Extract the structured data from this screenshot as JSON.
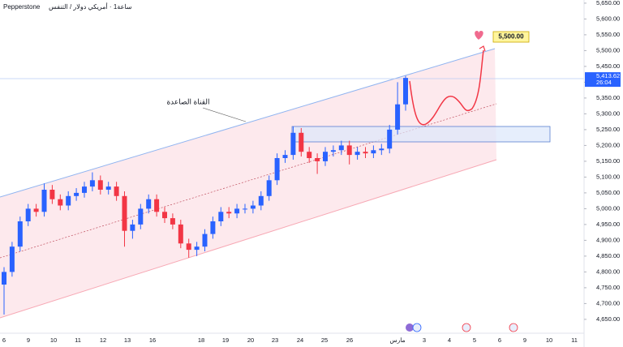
{
  "chart_data": {
    "type": "candlestick",
    "source": "Pepperstone",
    "title": "ساعة1 · أمريكي دولار / التنفس",
    "annotation": "القناة الصاعدة",
    "target_label": "5,500.00",
    "last_price_label": "5,413.62",
    "countdown": "26:04",
    "up_color": "#2962ff",
    "down_color": "#f23645",
    "categories": [
      "6",
      "9",
      "10",
      "11",
      "12",
      "13",
      "16",
      "18",
      "19",
      "20",
      "23",
      "24",
      "25",
      "26",
      "مارس",
      "3",
      "4",
      "5",
      "6",
      "9",
      "10",
      "11"
    ],
    "open": [
      4760,
      4800,
      4880,
      4960,
      5000,
      4990,
      5060,
      5030,
      5010,
      5040,
      5050,
      5070,
      5090,
      5060,
      5070,
      5040,
      4930,
      4950,
      5000,
      5030,
      4990,
      4970,
      4950,
      4890,
      4870,
      4880,
      4920,
      4960,
      4990,
      4985,
      5000,
      5000,
      5010,
      5040,
      5090,
      5160,
      5170,
      5240,
      5180,
      5160,
      5150,
      5180,
      5185,
      5200,
      5170,
      5180,
      5175,
      5185,
      5190,
      5250,
      5330
    ],
    "high": [
      4815,
      4895,
      4975,
      5015,
      5015,
      5080,
      5075,
      5045,
      5055,
      5065,
      5085,
      5115,
      5105,
      5085,
      5085,
      5055,
      4965,
      5015,
      5045,
      5045,
      5005,
      4985,
      4965,
      4905,
      4895,
      4935,
      4975,
      5005,
      5005,
      5015,
      5015,
      5025,
      5055,
      5105,
      5175,
      5185,
      5260,
      5255,
      5195,
      5175,
      5195,
      5200,
      5215,
      5215,
      5195,
      5195,
      5200,
      5205,
      5265,
      5400,
      5420
    ],
    "low": [
      4665,
      4785,
      4865,
      4945,
      4975,
      4975,
      5015,
      4995,
      4995,
      5025,
      5035,
      5055,
      5045,
      5045,
      5025,
      4880,
      4905,
      4935,
      4985,
      4975,
      4955,
      4935,
      4875,
      4845,
      4850,
      4865,
      4905,
      4945,
      4970,
      4970,
      4985,
      4985,
      4995,
      5025,
      5075,
      5145,
      5155,
      5165,
      5145,
      5110,
      5135,
      5165,
      5170,
      5140,
      5155,
      5160,
      5160,
      5170,
      5175,
      5235,
      5310
    ],
    "close": [
      4800,
      4880,
      4960,
      5000,
      4990,
      5060,
      5030,
      5010,
      5040,
      5050,
      5070,
      5090,
      5060,
      5070,
      5040,
      4930,
      4950,
      5000,
      5030,
      4990,
      4970,
      4950,
      4890,
      4870,
      4880,
      4920,
      4960,
      4990,
      4985,
      5000,
      5000,
      5010,
      5040,
      5090,
      5160,
      5170,
      5240,
      5180,
      5160,
      5150,
      5180,
      5185,
      5200,
      5170,
      5180,
      5175,
      5185,
      5190,
      5250,
      5330,
      5413.62
    ],
    "ylim": [
      4640,
      5660
    ],
    "yticks": [
      {
        "value": 4650,
        "label": "4,650.00"
      },
      {
        "value": 4700,
        "label": "4,700.00"
      },
      {
        "value": 4750,
        "label": "4,750.00"
      },
      {
        "value": 4800,
        "label": "4,800.00"
      },
      {
        "value": 4850,
        "label": "4,850.00"
      },
      {
        "value": 4900,
        "label": "4,900.00"
      },
      {
        "value": 4950,
        "label": "4,950.00"
      },
      {
        "value": 5000,
        "label": "5,000.00"
      },
      {
        "value": 5050,
        "label": "5,050.00"
      },
      {
        "value": 5100,
        "label": "5,100.00"
      },
      {
        "value": 5150,
        "label": "5,150.00"
      },
      {
        "value": 5200,
        "label": "5,200.00"
      },
      {
        "value": 5250,
        "label": "5,250.00"
      },
      {
        "value": 5300,
        "label": "5,300.00"
      },
      {
        "value": 5350,
        "label": "5,350.00"
      },
      {
        "value": 5400,
        "label": "5,400.00"
      },
      {
        "value": 5450,
        "label": "5,450.00"
      },
      {
        "value": 5500,
        "label": "5,500.00"
      },
      {
        "value": 5550,
        "label": "5,550.00"
      },
      {
        "value": 5600,
        "label": "5,600.00"
      },
      {
        "value": 5650,
        "label": "5,650.00"
      }
    ]
  }
}
